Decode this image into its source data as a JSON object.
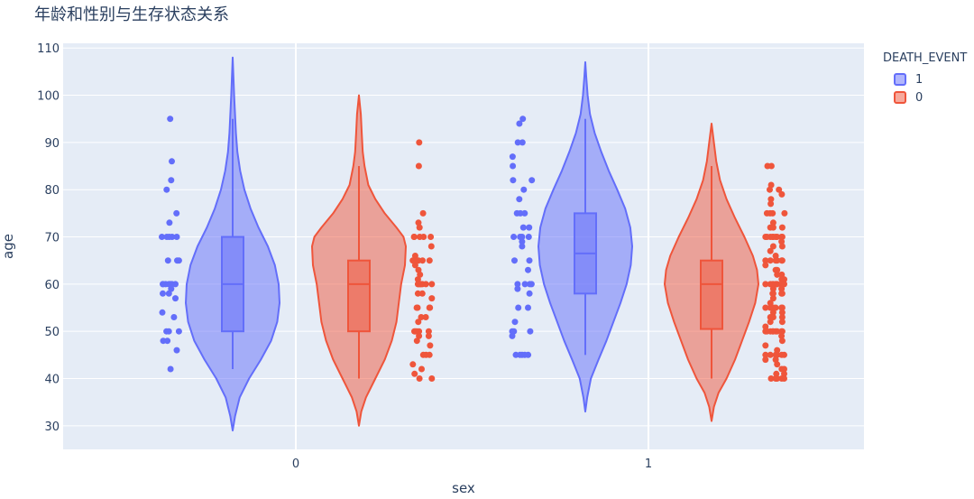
{
  "chart_data": {
    "type": "violin",
    "title": "年龄和性别与生存状态关系",
    "xlabel": "sex",
    "ylabel": "age",
    "ylim": [
      25,
      111
    ],
    "yticks": [
      30,
      40,
      50,
      60,
      70,
      80,
      90,
      100,
      110
    ],
    "categories": [
      "0",
      "1"
    ],
    "legend_title": "DEATH_EVENT",
    "legend_position": "top-right",
    "colors": {
      "1": "#636efa",
      "0": "#ef553b"
    },
    "series": [
      {
        "name": "1",
        "color": "#636efa",
        "groups": [
          {
            "sex": "0",
            "box": {
              "q1": 50,
              "median": 60,
              "q3": 70,
              "lower": 42,
              "upper": 95
            },
            "violin_range": [
              29,
              108
            ],
            "violin_shape": [
              [
                29,
                0.0
              ],
              [
                32,
                0.05
              ],
              [
                36,
                0.15
              ],
              [
                40,
                0.35
              ],
              [
                44,
                0.6
              ],
              [
                48,
                0.82
              ],
              [
                52,
                0.95
              ],
              [
                56,
                1.0
              ],
              [
                60,
                0.98
              ],
              [
                64,
                0.9
              ],
              [
                68,
                0.75
              ],
              [
                72,
                0.55
              ],
              [
                76,
                0.38
              ],
              [
                80,
                0.25
              ],
              [
                84,
                0.16
              ],
              [
                88,
                0.1
              ],
              [
                92,
                0.07
              ],
              [
                96,
                0.05
              ],
              [
                100,
                0.03
              ],
              [
                104,
                0.015
              ],
              [
                108,
                0.0
              ]
            ],
            "points": [
              95,
              86,
              82,
              80,
              75,
              73,
              70,
              70,
              70,
              70,
              70,
              65,
              65,
              65,
              60,
              60,
              60,
              60,
              60,
              60,
              60,
              60,
              59,
              58,
              58,
              57,
              54,
              53,
              50,
              50,
              50,
              48,
              48,
              46,
              42
            ]
          },
          {
            "sex": "1",
            "box": {
              "q1": 58,
              "median": 66.5,
              "q3": 75,
              "lower": 45,
              "upper": 95
            },
            "violin_range": [
              33,
              107
            ],
            "violin_shape": [
              [
                33,
                0.0
              ],
              [
                36,
                0.04
              ],
              [
                40,
                0.12
              ],
              [
                44,
                0.28
              ],
              [
                48,
                0.45
              ],
              [
                52,
                0.6
              ],
              [
                56,
                0.75
              ],
              [
                60,
                0.88
              ],
              [
                64,
                0.97
              ],
              [
                68,
                1.0
              ],
              [
                72,
                0.96
              ],
              [
                76,
                0.85
              ],
              [
                80,
                0.68
              ],
              [
                84,
                0.5
              ],
              [
                88,
                0.34
              ],
              [
                92,
                0.2
              ],
              [
                96,
                0.1
              ],
              [
                100,
                0.05
              ],
              [
                104,
                0.02
              ],
              [
                107,
                0.0
              ]
            ],
            "points": [
              95,
              94,
              90,
              90,
              87,
              85,
              82,
              82,
              80,
              78,
              75,
              75,
              75,
              72,
              72,
              70,
              70,
              70,
              70,
              69,
              68,
              65,
              65,
              63,
              60,
              60,
              60,
              60,
              59,
              58,
              55,
              55,
              52,
              50,
              50,
              50,
              49,
              45,
              45,
              45,
              45,
              45
            ]
          }
        ]
      },
      {
        "name": "0",
        "color": "#ef553b",
        "groups": [
          {
            "sex": "0",
            "box": {
              "q1": 50,
              "median": 60,
              "q3": 65,
              "lower": 40,
              "upper": 85
            },
            "violin_range": [
              30,
              100
            ],
            "violin_shape": [
              [
                30,
                0.0
              ],
              [
                33,
                0.05
              ],
              [
                36,
                0.15
              ],
              [
                40,
                0.35
              ],
              [
                44,
                0.55
              ],
              [
                48,
                0.7
              ],
              [
                52,
                0.8
              ],
              [
                56,
                0.85
              ],
              [
                60,
                0.9
              ],
              [
                64,
                0.98
              ],
              [
                68,
                1.0
              ],
              [
                70,
                0.95
              ],
              [
                72,
                0.8
              ],
              [
                75,
                0.55
              ],
              [
                78,
                0.35
              ],
              [
                81,
                0.2
              ],
              [
                85,
                0.12
              ],
              [
                88,
                0.08
              ],
              [
                92,
                0.06
              ],
              [
                96,
                0.04
              ],
              [
                100,
                0.0
              ]
            ],
            "points": [
              90,
              85,
              75,
              73,
              72,
              70,
              70,
              70,
              70,
              70,
              68,
              66,
              65,
              65,
              65,
              65,
              65,
              64,
              63,
              62,
              61,
              60,
              60,
              60,
              60,
              60,
              60,
              60,
              58,
              58,
              57,
              55,
              55,
              55,
              55,
              53,
              53,
              52,
              50,
              50,
              50,
              50,
              50,
              49,
              49,
              48,
              47,
              45,
              45,
              45,
              43,
              42,
              41,
              40,
              40
            ]
          },
          {
            "sex": "1",
            "box": {
              "q1": 50.5,
              "median": 60,
              "q3": 65,
              "lower": 40,
              "upper": 85
            },
            "violin_range": [
              31,
              94
            ],
            "violin_shape": [
              [
                31,
                0.0
              ],
              [
                34,
                0.05
              ],
              [
                37,
                0.15
              ],
              [
                40,
                0.32
              ],
              [
                44,
                0.5
              ],
              [
                48,
                0.65
              ],
              [
                52,
                0.8
              ],
              [
                56,
                0.93
              ],
              [
                60,
                1.0
              ],
              [
                63,
                0.97
              ],
              [
                66,
                0.88
              ],
              [
                70,
                0.7
              ],
              [
                74,
                0.5
              ],
              [
                78,
                0.32
              ],
              [
                82,
                0.18
              ],
              [
                86,
                0.1
              ],
              [
                90,
                0.05
              ],
              [
                94,
                0.0
              ]
            ],
            "points": [
              85,
              85,
              81,
              80,
              80,
              79,
              78,
              77,
              75,
              75,
              75,
              75,
              73,
              72,
              72,
              72,
              70,
              70,
              70,
              70,
              70,
              70,
              70,
              70,
              70,
              69,
              68,
              68,
              67,
              66,
              65,
              65,
              65,
              65,
              65,
              65,
              64,
              63,
              63,
              62,
              62,
              61,
              61,
              60,
              60,
              60,
              60,
              60,
              60,
              60,
              60,
              60,
              60,
              60,
              59,
              59,
              58,
              58,
              58,
              58,
              57,
              56,
              55,
              55,
              55,
              55,
              55,
              55,
              54,
              54,
              53,
              53,
              53,
              52,
              52,
              51,
              50,
              50,
              50,
              50,
              50,
              50,
              50,
              50,
              50,
              49,
              48,
              47,
              46,
              45,
              45,
              45,
              45,
              45,
              45,
              44,
              44,
              43,
              42,
              42,
              41,
              41,
              40,
              40,
              40,
              40,
              40,
              40
            ]
          }
        ]
      }
    ]
  }
}
